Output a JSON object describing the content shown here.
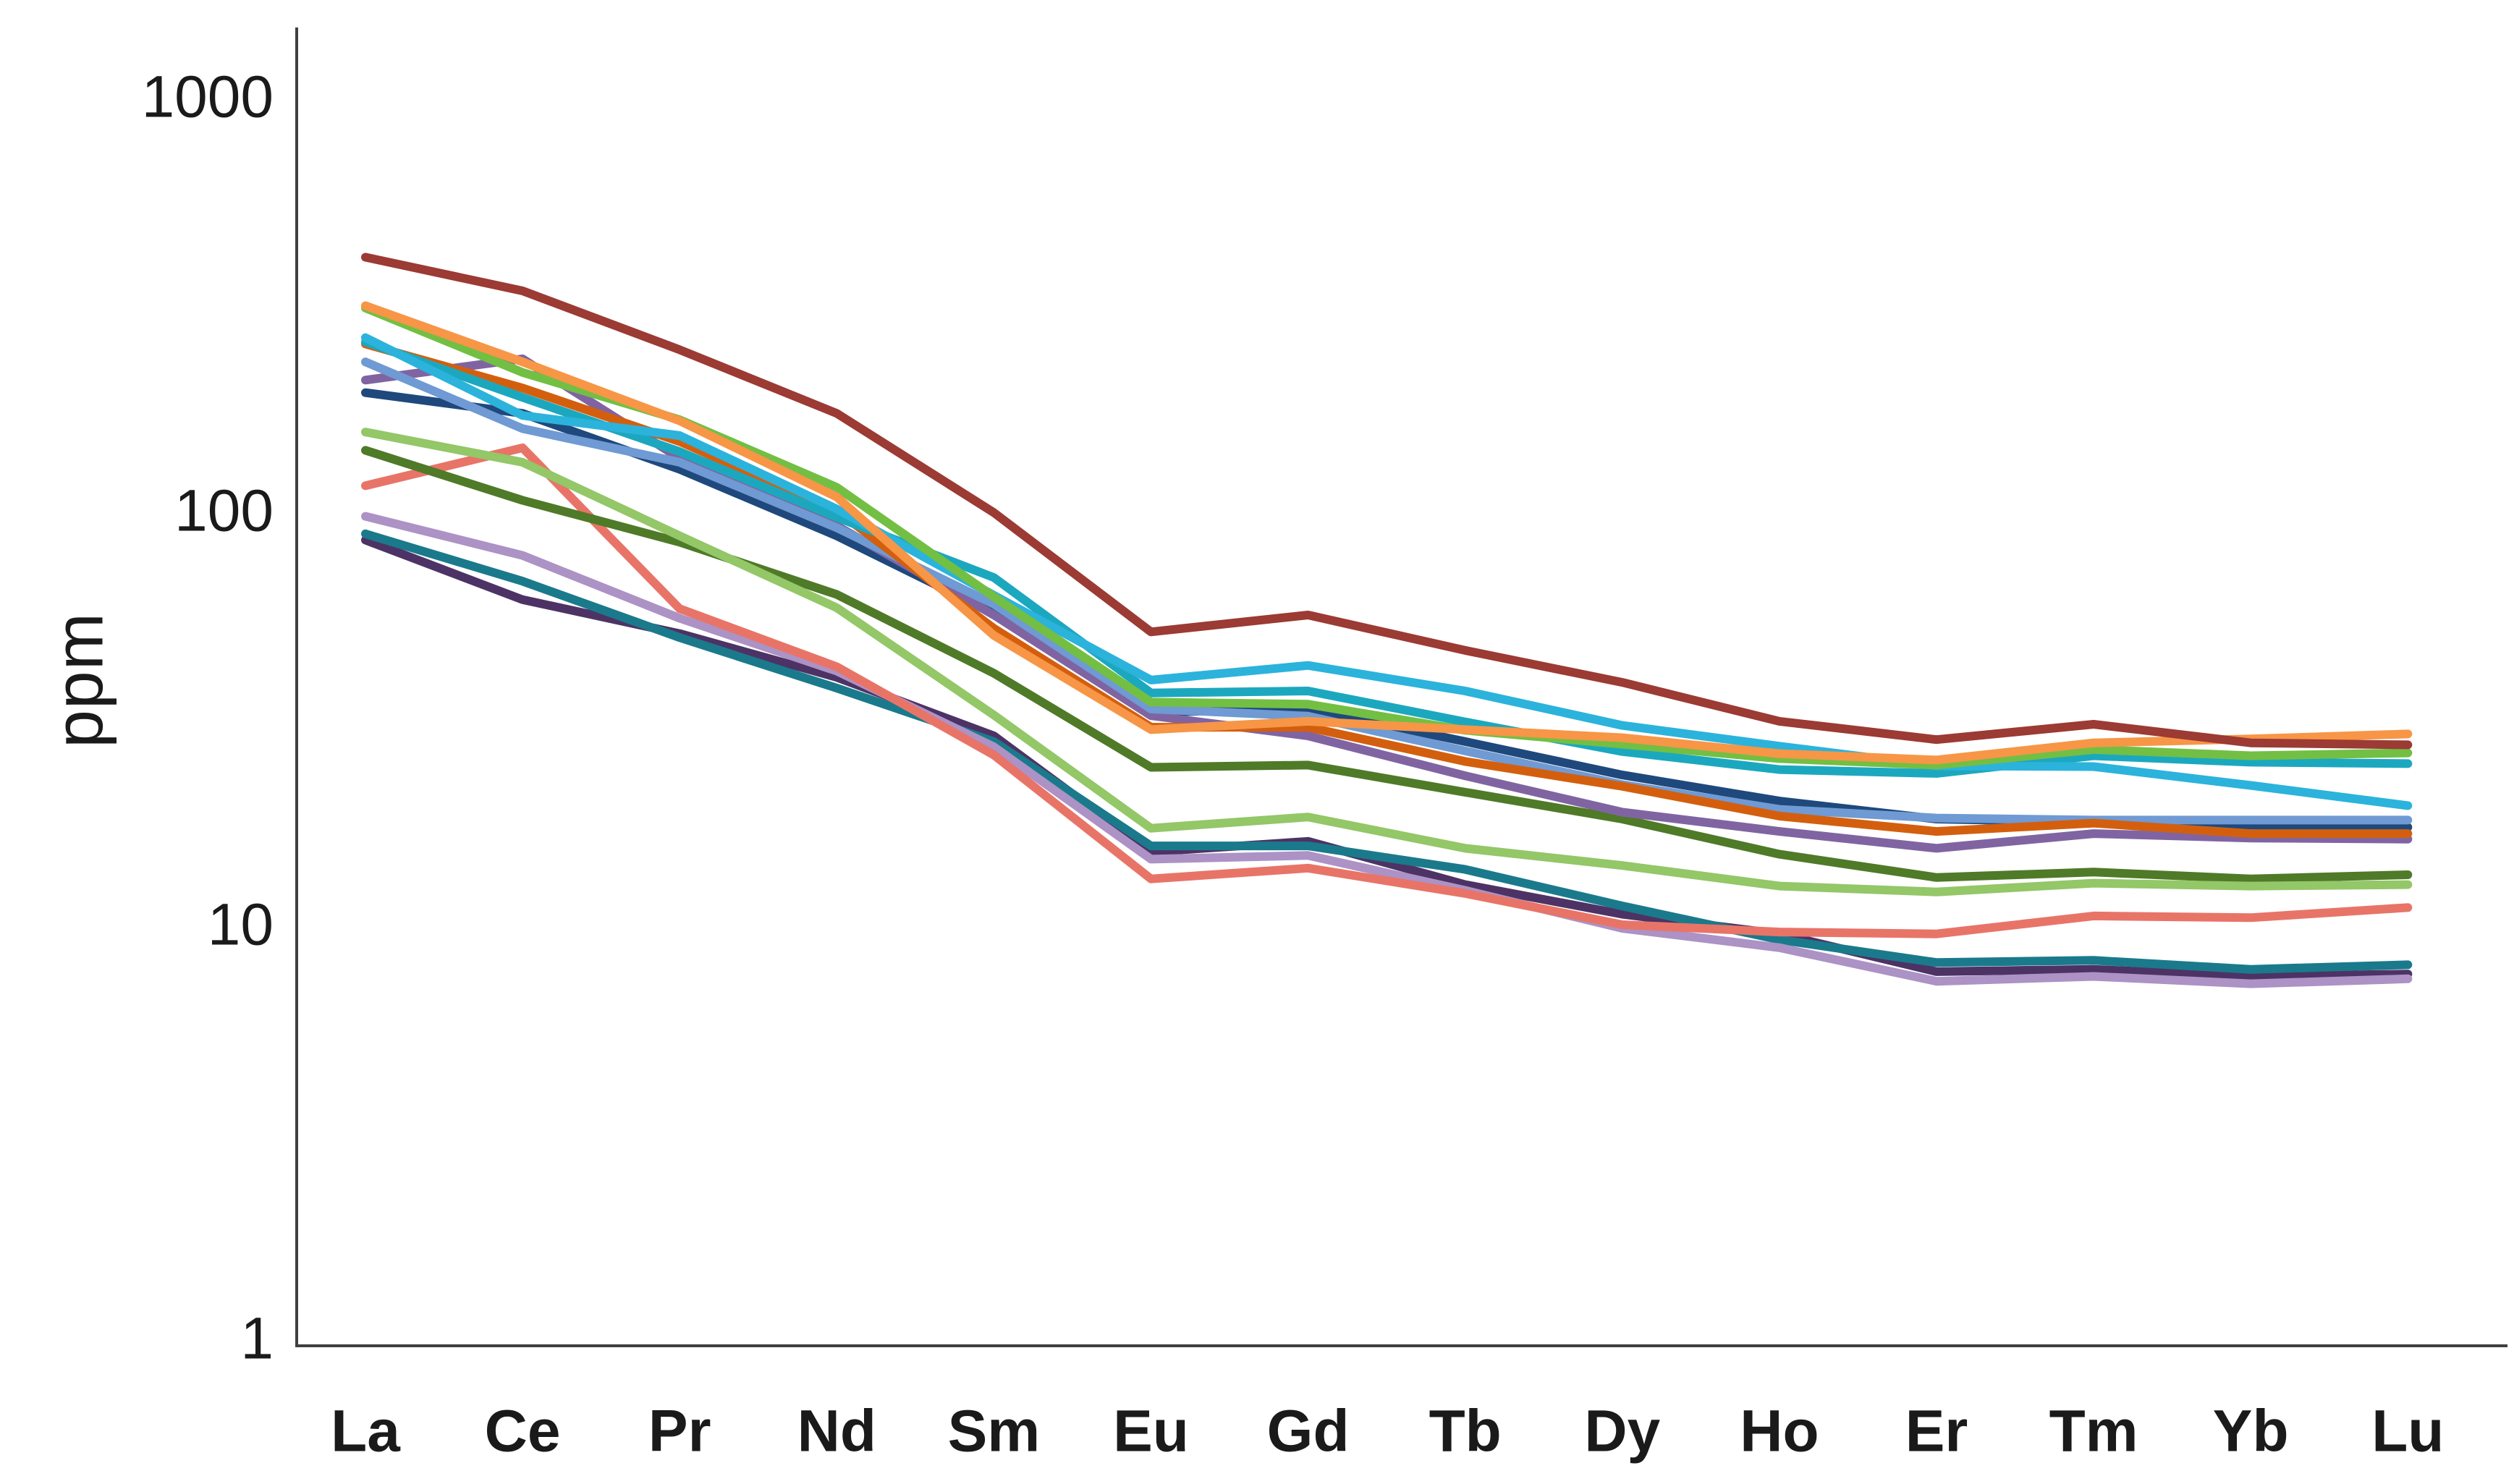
{
  "y_axis_label": "ppm",
  "axis_color": "#3f3f3f",
  "chart_data": {
    "type": "line",
    "title": "",
    "xlabel": "",
    "ylabel": "ppm",
    "yscale": "log",
    "ylim": [
      1,
      1000
    ],
    "yticks": [
      1000,
      100,
      10,
      1
    ],
    "grid": false,
    "legend_position": "none",
    "categories": [
      "La",
      "Ce",
      "Pr",
      "Nd",
      "Sm",
      "Eu",
      "Gd",
      "Tb",
      "Dy",
      "Ho",
      "Er",
      "Tm",
      "Yb",
      "Lu"
    ],
    "series": [
      {
        "name": "series-dark-red",
        "color": "#9c3a34",
        "values": [
          410,
          340,
          245,
          172,
          99,
          51,
          56,
          46,
          38.5,
          31,
          28,
          30.5,
          27.5,
          27.2
        ]
      },
      {
        "name": "series-orange",
        "color": "#f79646",
        "values": [
          313,
          229,
          165,
          108,
          50,
          29.6,
          31,
          29.6,
          28.3,
          25.9,
          25,
          27.5,
          28.1,
          28.9
        ]
      },
      {
        "name": "series-bright-green",
        "color": "#72bf44",
        "values": [
          309,
          216,
          166,
          114,
          62,
          34.5,
          34.1,
          29.5,
          27.3,
          25.2,
          24.3,
          26.5,
          25.6,
          26
        ]
      },
      {
        "name": "series-bright-cyan",
        "color": "#2bb3dc",
        "values": [
          262,
          170,
          152,
          101,
          62.5,
          39,
          42.3,
          36.7,
          30.3,
          27,
          24.2,
          24.1,
          21.7,
          19.4
        ]
      },
      {
        "name": "series-teal-cyan",
        "color": "#1ba8bf",
        "values": [
          256,
          188,
          139,
          96.5,
          69,
          36.3,
          36.7,
          30.9,
          26.2,
          23.7,
          23.2,
          25.6,
          24.7,
          24.5
        ]
      },
      {
        "name": "series-dark-orange",
        "color": "#d35f0e",
        "values": [
          253,
          198,
          147,
          100,
          52,
          30,
          30,
          24.8,
          21.6,
          18.3,
          16.8,
          17.6,
          16.6,
          16.6
        ]
      },
      {
        "name": "series-steel-blue",
        "color": "#6f9ad3",
        "values": [
          229,
          158,
          131,
          91,
          59.5,
          33.2,
          31.9,
          26.3,
          21.8,
          19,
          18.1,
          17.9,
          17.9,
          17.9
        ]
      },
      {
        "name": "series-purple",
        "color": "#8064a2",
        "values": [
          207,
          233,
          134,
          92,
          56,
          32,
          28.6,
          22.9,
          18.7,
          16.8,
          15.3,
          16.6,
          16.2,
          16.1
        ]
      },
      {
        "name": "series-navy",
        "color": "#1f497d",
        "values": [
          193,
          172,
          126,
          87,
          56.5,
          32.6,
          33.2,
          27.7,
          23,
          19.9,
          18,
          17.7,
          17.4,
          17.2
        ]
      },
      {
        "name": "series-yellow-green",
        "color": "#93c767",
        "values": [
          155,
          131,
          87,
          58.3,
          32.1,
          17.1,
          18.2,
          15.3,
          13.9,
          12.4,
          12,
          12.6,
          12.4,
          12.5
        ]
      },
      {
        "name": "series-olive-green",
        "color": "#4f7a28",
        "values": [
          140,
          106,
          84,
          62.8,
          40.5,
          24,
          24.3,
          20.9,
          18,
          14.8,
          13,
          13.4,
          12.9,
          13.2
        ]
      },
      {
        "name": "series-salmon",
        "color": "#e87468",
        "values": [
          115,
          142,
          58,
          42,
          25.7,
          12.9,
          13.7,
          11.9,
          10,
          9.6,
          9.5,
          10.5,
          10.4,
          11
        ]
      },
      {
        "name": "series-lavender",
        "color": "#ac92c5",
        "values": [
          97,
          78,
          55,
          41,
          26.9,
          14.4,
          14.7,
          12.1,
          9.8,
          8.8,
          7.3,
          7.5,
          7.2,
          7.4
        ]
      },
      {
        "name": "series-dark-teal",
        "color": "#1a7a8c",
        "values": [
          88,
          67.6,
          49.4,
          37.3,
          27.7,
          15.5,
          15.5,
          13.6,
          11.1,
          9.2,
          8.1,
          8.2,
          7.8,
          8
        ]
      },
      {
        "name": "series-dark-purple",
        "color": "#4d3365",
        "values": [
          85,
          61,
          50.5,
          39.6,
          28.6,
          15,
          15.9,
          12.5,
          10.6,
          9.5,
          7.7,
          7.8,
          7.5,
          7.6
        ]
      }
    ]
  }
}
